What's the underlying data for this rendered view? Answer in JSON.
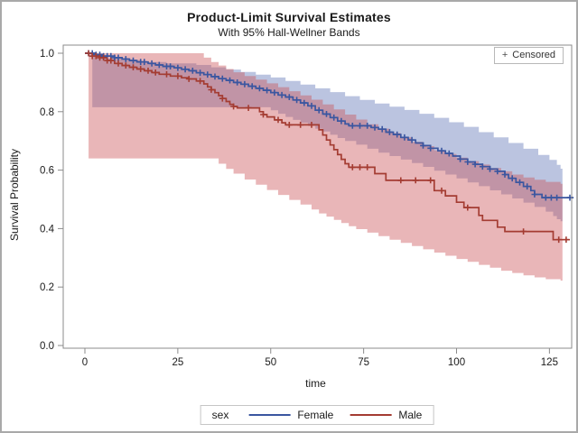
{
  "header": {
    "title": "Product-Limit Survival Estimates",
    "subtitle": "With 95% Hall-Wellner Bands"
  },
  "censored_box": {
    "marker": "+",
    "label": "Censored"
  },
  "legend": {
    "title": "sex",
    "entries": [
      {
        "label": "Female",
        "color": "#3b56a0"
      },
      {
        "label": "Male",
        "color": "#a43c32"
      }
    ]
  },
  "axes": {
    "x": {
      "label": "time",
      "ticks": [
        "0",
        "25",
        "50",
        "75",
        "100",
        "125"
      ],
      "tick_values": [
        0,
        25,
        50,
        75,
        100,
        125
      ],
      "range": [
        -6,
        131
      ]
    },
    "y": {
      "label": "Survival Probability",
      "ticks": [
        "1.0",
        "0.8",
        "0.6",
        "0.4",
        "0.2",
        "0.0"
      ],
      "tick_values": [
        1.0,
        0.8,
        0.6,
        0.4,
        0.2,
        0.0
      ],
      "range": [
        0,
        1.03
      ]
    }
  },
  "colors": {
    "female_line": "#3b56a0",
    "male_line": "#a43c32",
    "female_band": "rgba(59,86,165,0.35)",
    "male_band": "rgba(202,81,86,0.42)",
    "frame": "#8b8b8b",
    "text": "#1a1a1a"
  },
  "chart_data": {
    "type": "line",
    "title": "Product-Limit Survival Estimates",
    "subtitle": "With 95% Hall-Wellner Bands",
    "xlabel": "time",
    "ylabel": "Survival Probability",
    "xlim": [
      -6,
      131
    ],
    "ylim": [
      0,
      1.03
    ],
    "grid": false,
    "legend_position": "bottom",
    "series": [
      {
        "name": "Female",
        "steps": [
          [
            0,
            1.0
          ],
          [
            3,
            0.995
          ],
          [
            5,
            0.99
          ],
          [
            8,
            0.985
          ],
          [
            10,
            0.98
          ],
          [
            12,
            0.975
          ],
          [
            14,
            0.97
          ],
          [
            17,
            0.965
          ],
          [
            19,
            0.96
          ],
          [
            21,
            0.955
          ],
          [
            24,
            0.95
          ],
          [
            26,
            0.945
          ],
          [
            28,
            0.94
          ],
          [
            30,
            0.933
          ],
          [
            32,
            0.927
          ],
          [
            34,
            0.92
          ],
          [
            36,
            0.913
          ],
          [
            38,
            0.907
          ],
          [
            40,
            0.9
          ],
          [
            42,
            0.894
          ],
          [
            44,
            0.887
          ],
          [
            46,
            0.88
          ],
          [
            48,
            0.873
          ],
          [
            50,
            0.865
          ],
          [
            52,
            0.857
          ],
          [
            54,
            0.85
          ],
          [
            56,
            0.84
          ],
          [
            58,
            0.83
          ],
          [
            60,
            0.82
          ],
          [
            62,
            0.805
          ],
          [
            64,
            0.792
          ],
          [
            66,
            0.78
          ],
          [
            68,
            0.768
          ],
          [
            70,
            0.758
          ],
          [
            71,
            0.752
          ],
          [
            77,
            0.746
          ],
          [
            79,
            0.74
          ],
          [
            81,
            0.73
          ],
          [
            83,
            0.722
          ],
          [
            85,
            0.712
          ],
          [
            87,
            0.703
          ],
          [
            89,
            0.693
          ],
          [
            91,
            0.684
          ],
          [
            93,
            0.675
          ],
          [
            95,
            0.666
          ],
          [
            97,
            0.657
          ],
          [
            99,
            0.648
          ],
          [
            101,
            0.638
          ],
          [
            103,
            0.628
          ],
          [
            105,
            0.62
          ],
          [
            107,
            0.612
          ],
          [
            109,
            0.604
          ],
          [
            111,
            0.596
          ],
          [
            113,
            0.585
          ],
          [
            114,
            0.572
          ],
          [
            116,
            0.558
          ],
          [
            118,
            0.544
          ],
          [
            120,
            0.53
          ],
          [
            121,
            0.517
          ],
          [
            123,
            0.506
          ]
        ],
        "end_time": 131.5,
        "censor_times": [
          1,
          2,
          3,
          4,
          5,
          6,
          7,
          8,
          9,
          11,
          13,
          15,
          16,
          18,
          20,
          22,
          23,
          25,
          27,
          29,
          31,
          33,
          35,
          37,
          39,
          41,
          43,
          45,
          47,
          49,
          51,
          53,
          55,
          57,
          59,
          61,
          63,
          65,
          67,
          69,
          72,
          74,
          76,
          78,
          80,
          82,
          84,
          86,
          88,
          91,
          93,
          96,
          98,
          101,
          103,
          105,
          107,
          109,
          111,
          113,
          115,
          117,
          119,
          121,
          124,
          125.5,
          127,
          130.5
        ],
        "band_upper": [
          [
            2,
            0.99
          ],
          [
            6,
            0.982
          ],
          [
            10,
            0.976
          ],
          [
            15,
            0.97
          ],
          [
            22,
            0.965
          ],
          [
            30,
            0.96
          ],
          [
            34,
            0.952
          ],
          [
            38,
            0.944
          ],
          [
            42,
            0.936
          ],
          [
            46,
            0.927
          ],
          [
            50,
            0.917
          ],
          [
            54,
            0.905
          ],
          [
            58,
            0.893
          ],
          [
            62,
            0.88
          ],
          [
            66,
            0.867
          ],
          [
            70,
            0.853
          ],
          [
            74,
            0.84
          ],
          [
            78,
            0.828
          ],
          [
            82,
            0.817
          ],
          [
            86,
            0.806
          ],
          [
            90,
            0.793
          ],
          [
            94,
            0.779
          ],
          [
            98,
            0.764
          ],
          [
            102,
            0.748
          ],
          [
            106,
            0.73
          ],
          [
            110,
            0.712
          ],
          [
            114,
            0.693
          ],
          [
            118,
            0.673
          ],
          [
            122,
            0.652
          ],
          [
            125,
            0.635
          ],
          [
            127,
            0.618
          ],
          [
            128,
            0.605
          ]
        ],
        "band_lower": [
          [
            2,
            0.815
          ],
          [
            48,
            0.815
          ],
          [
            50,
            0.805
          ],
          [
            52,
            0.793
          ],
          [
            54,
            0.782
          ],
          [
            56,
            0.772
          ],
          [
            58,
            0.762
          ],
          [
            60,
            0.752
          ],
          [
            62,
            0.742
          ],
          [
            64,
            0.732
          ],
          [
            66,
            0.721
          ],
          [
            68,
            0.71
          ],
          [
            70,
            0.7
          ],
          [
            73,
            0.687
          ],
          [
            76,
            0.673
          ],
          [
            79,
            0.66
          ],
          [
            82,
            0.648
          ],
          [
            85,
            0.636
          ],
          [
            88,
            0.624
          ],
          [
            91,
            0.611
          ],
          [
            94,
            0.598
          ],
          [
            97,
            0.585
          ],
          [
            100,
            0.572
          ],
          [
            103,
            0.558
          ],
          [
            106,
            0.545
          ],
          [
            109,
            0.531
          ],
          [
            112,
            0.517
          ],
          [
            115,
            0.503
          ],
          [
            118,
            0.489
          ],
          [
            121,
            0.474
          ],
          [
            124,
            0.458
          ],
          [
            126,
            0.443
          ],
          [
            127,
            0.432
          ],
          [
            128,
            0.425
          ]
        ],
        "band_end_time": 128.5
      },
      {
        "name": "Male",
        "steps": [
          [
            0,
            1.0
          ],
          [
            2,
            0.99
          ],
          [
            4,
            0.985
          ],
          [
            6,
            0.975
          ],
          [
            8,
            0.965
          ],
          [
            10,
            0.958
          ],
          [
            12,
            0.952
          ],
          [
            14,
            0.946
          ],
          [
            16,
            0.94
          ],
          [
            18,
            0.934
          ],
          [
            20,
            0.928
          ],
          [
            23,
            0.922
          ],
          [
            26,
            0.916
          ],
          [
            28,
            0.912
          ],
          [
            30,
            0.905
          ],
          [
            32,
            0.895
          ],
          [
            33,
            0.885
          ],
          [
            34,
            0.875
          ],
          [
            35,
            0.865
          ],
          [
            36,
            0.855
          ],
          [
            37,
            0.845
          ],
          [
            38,
            0.835
          ],
          [
            39,
            0.825
          ],
          [
            40,
            0.818
          ],
          [
            41,
            0.813
          ],
          [
            47,
            0.8
          ],
          [
            48,
            0.79
          ],
          [
            49,
            0.782
          ],
          [
            51,
            0.772
          ],
          [
            53,
            0.762
          ],
          [
            54,
            0.755
          ],
          [
            63,
            0.738
          ],
          [
            64,
            0.72
          ],
          [
            65,
            0.703
          ],
          [
            66,
            0.686
          ],
          [
            67,
            0.67
          ],
          [
            68,
            0.653
          ],
          [
            69,
            0.637
          ],
          [
            70,
            0.622
          ],
          [
            71,
            0.61
          ],
          [
            78,
            0.588
          ],
          [
            81,
            0.565
          ],
          [
            94,
            0.53
          ],
          [
            97,
            0.512
          ],
          [
            100,
            0.49
          ],
          [
            102,
            0.472
          ],
          [
            106,
            0.445
          ],
          [
            107,
            0.428
          ],
          [
            111,
            0.405
          ],
          [
            113,
            0.39
          ],
          [
            126,
            0.362
          ]
        ],
        "end_time": 130.5,
        "censor_times": [
          1,
          2,
          3,
          4,
          5,
          6,
          7,
          9,
          11,
          13,
          15,
          17,
          19,
          22,
          25,
          28,
          31,
          34,
          37,
          40,
          44,
          48,
          52,
          55,
          58,
          61,
          72,
          74,
          76,
          85,
          89,
          93,
          96,
          103,
          118,
          127.5,
          129.5
        ],
        "band_upper": [
          [
            1,
            1.0
          ],
          [
            30,
            1.0
          ],
          [
            32,
            0.985
          ],
          [
            34,
            0.97
          ],
          [
            36,
            0.958
          ],
          [
            38,
            0.946
          ],
          [
            40,
            0.935
          ],
          [
            43,
            0.922
          ],
          [
            46,
            0.91
          ],
          [
            49,
            0.897
          ],
          [
            52,
            0.884
          ],
          [
            55,
            0.87
          ],
          [
            58,
            0.856
          ],
          [
            61,
            0.841
          ],
          [
            64,
            0.825
          ],
          [
            67,
            0.808
          ],
          [
            70,
            0.79
          ],
          [
            73,
            0.773
          ],
          [
            76,
            0.757
          ],
          [
            79,
            0.742
          ],
          [
            82,
            0.727
          ],
          [
            85,
            0.712
          ],
          [
            88,
            0.697
          ],
          [
            91,
            0.682
          ],
          [
            94,
            0.668
          ],
          [
            97,
            0.655
          ],
          [
            100,
            0.643
          ],
          [
            103,
            0.631
          ],
          [
            106,
            0.619
          ],
          [
            109,
            0.607
          ],
          [
            112,
            0.596
          ],
          [
            115,
            0.585
          ],
          [
            118,
            0.575
          ],
          [
            121,
            0.567
          ],
          [
            124,
            0.56
          ],
          [
            128,
            0.553
          ]
        ],
        "band_lower": [
          [
            1,
            0.64
          ],
          [
            34,
            0.64
          ],
          [
            36,
            0.622
          ],
          [
            38,
            0.604
          ],
          [
            40,
            0.588
          ],
          [
            43,
            0.568
          ],
          [
            46,
            0.55
          ],
          [
            49,
            0.532
          ],
          [
            52,
            0.515
          ],
          [
            55,
            0.498
          ],
          [
            58,
            0.482
          ],
          [
            61,
            0.465
          ],
          [
            63,
            0.452
          ],
          [
            65,
            0.441
          ],
          [
            67,
            0.43
          ],
          [
            69,
            0.419
          ],
          [
            71,
            0.408
          ],
          [
            73,
            0.398
          ],
          [
            76,
            0.386
          ],
          [
            79,
            0.374
          ],
          [
            82,
            0.362
          ],
          [
            85,
            0.351
          ],
          [
            88,
            0.34
          ],
          [
            91,
            0.329
          ],
          [
            94,
            0.318
          ],
          [
            97,
            0.307
          ],
          [
            100,
            0.296
          ],
          [
            103,
            0.286
          ],
          [
            106,
            0.276
          ],
          [
            109,
            0.266
          ],
          [
            112,
            0.256
          ],
          [
            115,
            0.248
          ],
          [
            118,
            0.24
          ],
          [
            121,
            0.233
          ],
          [
            124,
            0.227
          ],
          [
            128,
            0.222
          ]
        ],
        "band_end_time": 128.5
      }
    ]
  }
}
